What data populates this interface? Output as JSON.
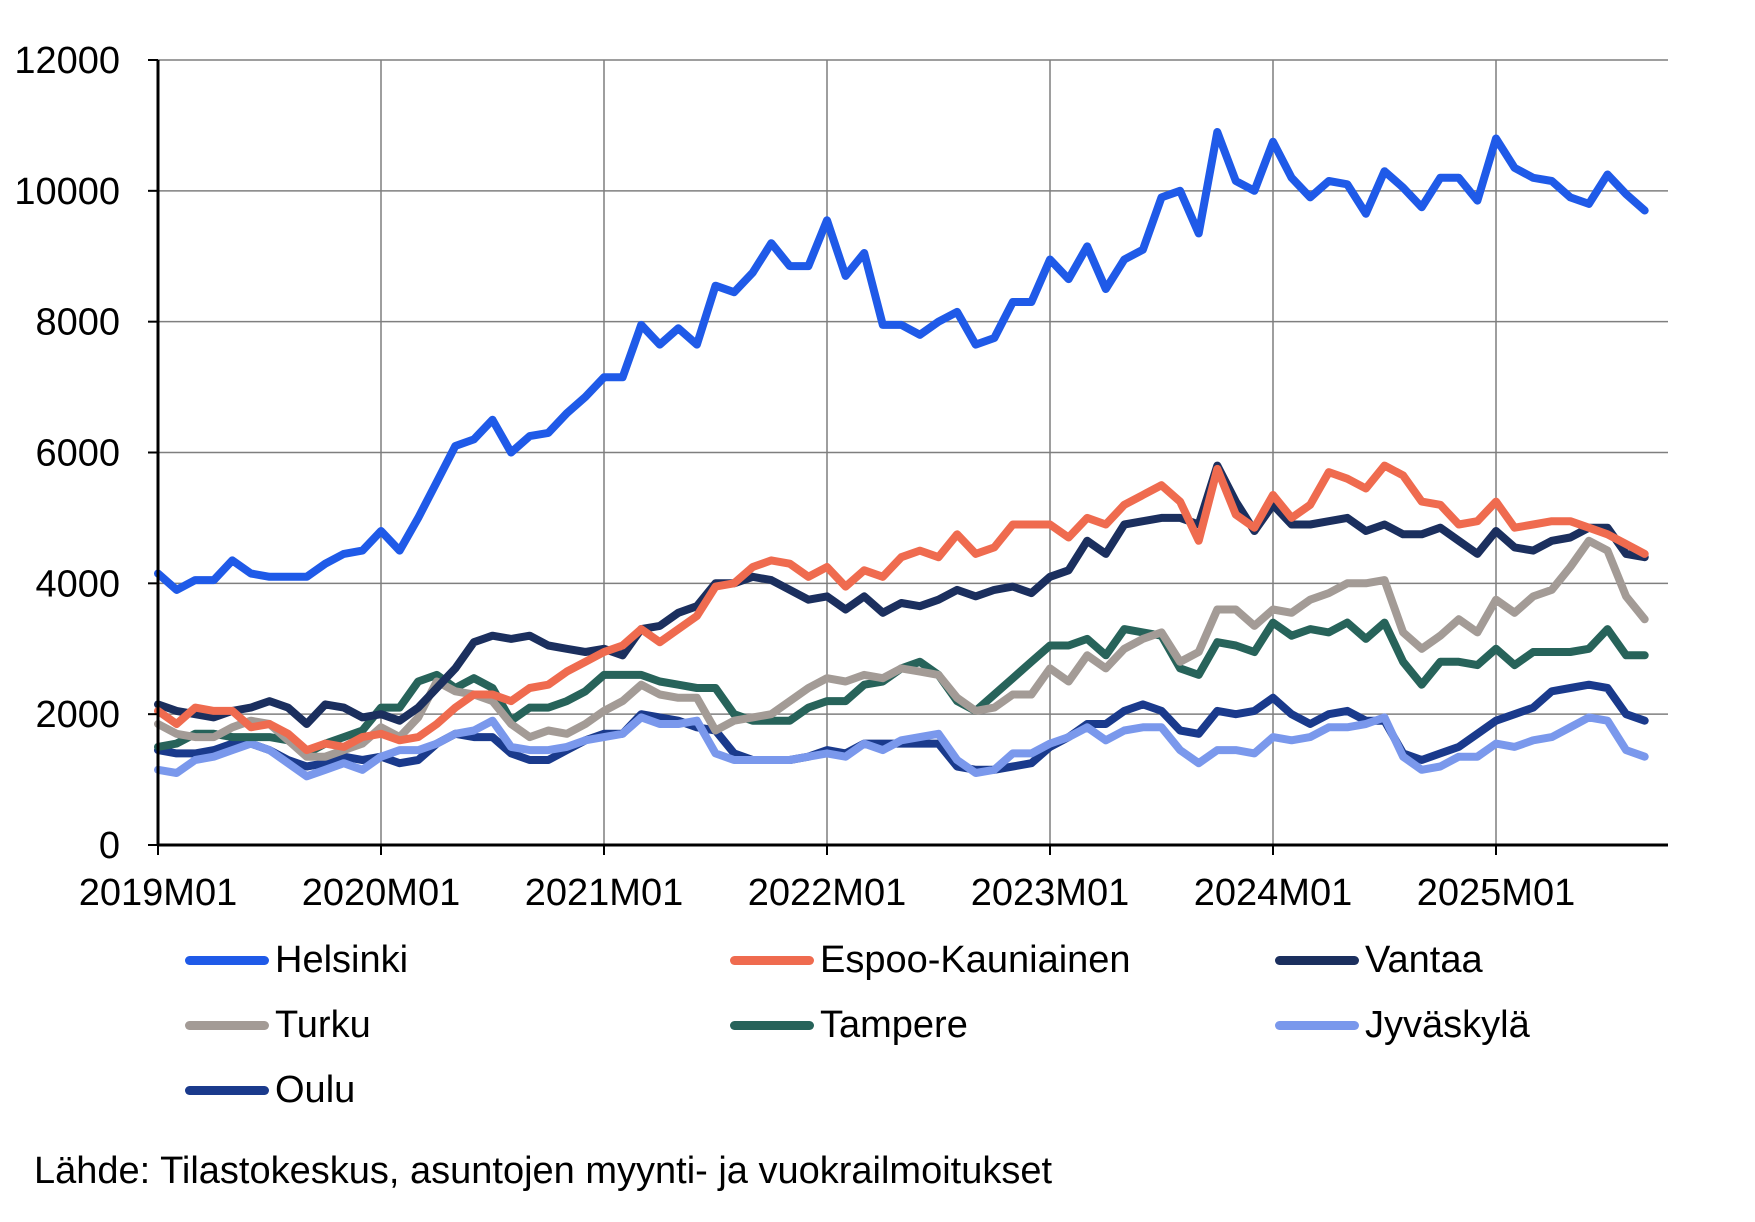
{
  "chart_data": {
    "type": "line",
    "title": "",
    "xlabel": "",
    "ylabel": "",
    "ylim": [
      0,
      12000
    ],
    "yticks": [
      "0",
      "2000",
      "4000",
      "6000",
      "8000",
      "10000",
      "12000"
    ],
    "xticks": [
      "2019M01",
      "2020M01",
      "2021M01",
      "2022M01",
      "2023M01",
      "2024M01",
      "2025M01"
    ],
    "x_start": "2019M01",
    "x_end": "2025M09",
    "grid": true,
    "legend_position": "bottom",
    "source": "Lähde: Tilastokeskus, asuntojen myynti- ja vuokrailmoitukset",
    "series": [
      {
        "name": "Helsinki",
        "color": "#1f5ae8",
        "values": [
          4150,
          3900,
          4050,
          4050,
          4350,
          4150,
          4100,
          4100,
          4100,
          4300,
          4450,
          4500,
          4800,
          4500,
          5000,
          5550,
          6100,
          6200,
          6500,
          6000,
          6250,
          6300,
          6600,
          6850,
          7150,
          7150,
          7950,
          7650,
          7900,
          7650,
          8550,
          8450,
          8750,
          9200,
          8850,
          8850,
          9550,
          8700,
          9050,
          7950,
          7950,
          7800,
          8000,
          8150,
          7650,
          7750,
          8300,
          8300,
          8950,
          8650,
          9150,
          8500,
          8950,
          9100,
          9900,
          10000,
          9350,
          10900,
          10150,
          10000,
          10750,
          10200,
          9900,
          10150,
          10100,
          9650,
          10300,
          10050,
          9750,
          10200,
          10200,
          9850,
          10800,
          10350,
          10200,
          10150,
          9900,
          9800,
          10250,
          9950,
          9700
        ]
      },
      {
        "name": "Espoo-Kauniainen",
        "color": "#ef6b4f",
        "values": [
          2050,
          1850,
          2100,
          2050,
          2050,
          1800,
          1850,
          1700,
          1450,
          1550,
          1500,
          1650,
          1700,
          1600,
          1650,
          1850,
          2100,
          2300,
          2300,
          2200,
          2400,
          2450,
          2650,
          2800,
          2950,
          3050,
          3300,
          3100,
          3300,
          3500,
          3950,
          4000,
          4250,
          4350,
          4300,
          4100,
          4250,
          3950,
          4200,
          4100,
          4400,
          4500,
          4400,
          4750,
          4450,
          4550,
          4900,
          4900,
          4900,
          4700,
          5000,
          4900,
          5200,
          5350,
          5500,
          5250,
          4650,
          5750,
          5050,
          4850,
          5350,
          5000,
          5200,
          5700,
          5600,
          5450,
          5800,
          5650,
          5250,
          5200,
          4900,
          4950,
          5250,
          4850,
          4900,
          4950,
          4950,
          4850,
          4750,
          4600,
          4450
        ]
      },
      {
        "name": "Vantaa",
        "color": "#1b2f5e",
        "values": [
          2150,
          2050,
          2000,
          1950,
          2050,
          2100,
          2200,
          2100,
          1850,
          2150,
          2100,
          1950,
          2000,
          1900,
          2100,
          2400,
          2700,
          3100,
          3200,
          3150,
          3200,
          3050,
          3000,
          2950,
          3000,
          2900,
          3300,
          3350,
          3550,
          3650,
          4000,
          4000,
          4100,
          4050,
          3900,
          3750,
          3800,
          3600,
          3800,
          3550,
          3700,
          3650,
          3750,
          3900,
          3800,
          3900,
          3950,
          3850,
          4100,
          4200,
          4650,
          4450,
          4900,
          4950,
          5000,
          5000,
          4900,
          5800,
          5250,
          4800,
          5200,
          4900,
          4900,
          4950,
          5000,
          4800,
          4900,
          4750,
          4750,
          4850,
          4650,
          4450,
          4800,
          4550,
          4500,
          4650,
          4700,
          4850,
          4850,
          4450,
          4400
        ]
      },
      {
        "name": "Turku",
        "color": "#a39b96",
        "values": [
          1850,
          1700,
          1650,
          1650,
          1800,
          1900,
          1850,
          1600,
          1350,
          1350,
          1450,
          1550,
          1800,
          1650,
          1950,
          2500,
          2350,
          2300,
          2200,
          1850,
          1650,
          1750,
          1700,
          1850,
          2050,
          2200,
          2450,
          2300,
          2250,
          2250,
          1750,
          1900,
          1950,
          2000,
          2200,
          2400,
          2550,
          2500,
          2600,
          2550,
          2700,
          2650,
          2600,
          2250,
          2050,
          2100,
          2300,
          2300,
          2700,
          2500,
          2900,
          2700,
          3000,
          3150,
          3250,
          2800,
          2950,
          3600,
          3600,
          3350,
          3600,
          3550,
          3750,
          3850,
          4000,
          4000,
          4050,
          3250,
          3000,
          3200,
          3450,
          3250,
          3750,
          3550,
          3800,
          3900,
          4250,
          4650,
          4500,
          3800,
          3450
        ]
      },
      {
        "name": "Tampere",
        "color": "#27635a",
        "values": [
          1500,
          1550,
          1700,
          1700,
          1650,
          1650,
          1650,
          1600,
          1400,
          1550,
          1650,
          1750,
          2100,
          2100,
          2500,
          2600,
          2400,
          2550,
          2400,
          1900,
          2100,
          2100,
          2200,
          2350,
          2600,
          2600,
          2600,
          2500,
          2450,
          2400,
          2400,
          2000,
          1900,
          1900,
          1900,
          2100,
          2200,
          2200,
          2450,
          2500,
          2700,
          2800,
          2600,
          2200,
          2050,
          2300,
          2550,
          2800,
          3050,
          3050,
          3150,
          2900,
          3300,
          3250,
          3200,
          2700,
          2600,
          3100,
          3050,
          2950,
          3400,
          3200,
          3300,
          3250,
          3400,
          3150,
          3400,
          2800,
          2450,
          2800,
          2800,
          2750,
          3000,
          2750,
          2950,
          2950,
          2950,
          3000,
          3300,
          2900,
          2900
        ]
      },
      {
        "name": "Jyväskylä",
        "color": "#7a98ec",
        "values": [
          1150,
          1100,
          1300,
          1350,
          1450,
          1550,
          1450,
          1250,
          1050,
          1150,
          1250,
          1150,
          1350,
          1450,
          1450,
          1550,
          1700,
          1750,
          1900,
          1500,
          1450,
          1450,
          1500,
          1600,
          1650,
          1700,
          1950,
          1850,
          1850,
          1900,
          1400,
          1300,
          1300,
          1300,
          1300,
          1350,
          1400,
          1350,
          1550,
          1450,
          1600,
          1650,
          1700,
          1300,
          1100,
          1150,
          1400,
          1400,
          1550,
          1650,
          1800,
          1600,
          1750,
          1800,
          1800,
          1450,
          1250,
          1450,
          1450,
          1400,
          1650,
          1600,
          1650,
          1800,
          1800,
          1850,
          1950,
          1350,
          1150,
          1200,
          1350,
          1350,
          1550,
          1500,
          1600,
          1650,
          1800,
          1950,
          1900,
          1450,
          1350
        ]
      },
      {
        "name": "Oulu",
        "color": "#1a3a8c",
        "values": [
          1450,
          1400,
          1400,
          1450,
          1550,
          1550,
          1450,
          1300,
          1200,
          1250,
          1350,
          1300,
          1350,
          1250,
          1300,
          1550,
          1700,
          1650,
          1650,
          1400,
          1300,
          1300,
          1450,
          1600,
          1700,
          1700,
          2000,
          1950,
          1900,
          1800,
          1750,
          1400,
          1300,
          1300,
          1300,
          1350,
          1450,
          1400,
          1550,
          1550,
          1550,
          1550,
          1550,
          1200,
          1150,
          1150,
          1200,
          1250,
          1500,
          1650,
          1850,
          1850,
          2050,
          2150,
          2050,
          1750,
          1700,
          2050,
          2000,
          2050,
          2250,
          2000,
          1850,
          2000,
          2050,
          1900,
          1900,
          1400,
          1300,
          1400,
          1500,
          1700,
          1900,
          2000,
          2100,
          2350,
          2400,
          2450,
          2400,
          2000,
          1900
        ]
      }
    ]
  }
}
